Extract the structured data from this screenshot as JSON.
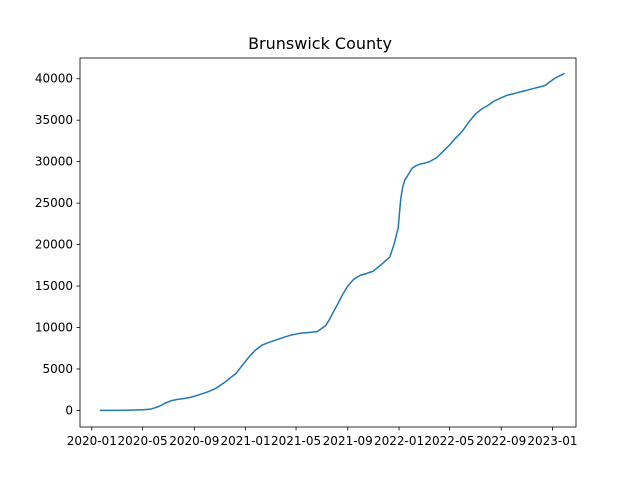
{
  "chart_data": {
    "type": "line",
    "title": "Brunswick County",
    "xlabel": "",
    "ylabel": "",
    "x_ticks": [
      "2020-01",
      "2020-05",
      "2020-09",
      "2021-01",
      "2021-05",
      "2021-09",
      "2022-01",
      "2022-05",
      "2022-09",
      "2023-01"
    ],
    "y_ticks": [
      0,
      5000,
      10000,
      15000,
      20000,
      25000,
      30000,
      35000,
      40000
    ],
    "xlim": [
      "2019-12-04",
      "2023-02-26"
    ],
    "ylim": [
      -2000,
      42500
    ],
    "grid": false,
    "series": [
      {
        "color": "#1f77b4",
        "x": [
          "2020-01-22",
          "2020-03-01",
          "2020-04-01",
          "2020-05-01",
          "2020-05-20",
          "2020-06-10",
          "2020-06-25",
          "2020-07-10",
          "2020-07-25",
          "2020-08-10",
          "2020-08-25",
          "2020-09-10",
          "2020-10-01",
          "2020-10-20",
          "2020-11-10",
          "2020-11-25",
          "2020-12-10",
          "2020-12-25",
          "2021-01-10",
          "2021-01-25",
          "2021-02-10",
          "2021-02-25",
          "2021-03-15",
          "2021-04-01",
          "2021-04-20",
          "2021-05-10",
          "2021-06-01",
          "2021-06-20",
          "2021-07-10",
          "2021-07-20",
          "2021-07-30",
          "2021-08-10",
          "2021-08-20",
          "2021-09-01",
          "2021-09-15",
          "2021-10-01",
          "2021-10-15",
          "2021-11-01",
          "2021-11-20",
          "2021-12-10",
          "2021-12-20",
          "2021-12-30",
          "2022-01-05",
          "2022-01-10",
          "2022-01-15",
          "2022-01-20",
          "2022-01-25",
          "2022-02-01",
          "2022-02-10",
          "2022-02-20",
          "2022-03-01",
          "2022-03-15",
          "2022-04-01",
          "2022-04-15",
          "2022-05-01",
          "2022-05-15",
          "2022-06-01",
          "2022-06-15",
          "2022-07-01",
          "2022-07-15",
          "2022-08-01",
          "2022-08-15",
          "2022-09-01",
          "2022-09-15",
          "2022-10-01",
          "2022-10-15",
          "2022-11-01",
          "2022-11-15",
          "2022-12-01",
          "2022-12-15",
          "2022-12-25",
          "2023-01-05",
          "2023-01-12",
          "2023-01-20",
          "2023-01-28"
        ],
        "y": [
          0,
          10,
          30,
          80,
          150,
          500,
          900,
          1200,
          1350,
          1450,
          1600,
          1850,
          2200,
          2600,
          3300,
          3900,
          4500,
          5500,
          6500,
          7300,
          7900,
          8200,
          8500,
          8800,
          9100,
          9300,
          9400,
          9500,
          10200,
          11000,
          12000,
          13000,
          14000,
          15000,
          15800,
          16300,
          16500,
          16800,
          17600,
          18500,
          20000,
          22000,
          25500,
          27000,
          27800,
          28200,
          28600,
          29200,
          29500,
          29700,
          29800,
          30000,
          30500,
          31200,
          32000,
          32800,
          33700,
          34700,
          35700,
          36300,
          36800,
          37300,
          37700,
          38000,
          38200,
          38400,
          38600,
          38800,
          39000,
          39200,
          39600,
          40000,
          40200,
          40400,
          40600
        ]
      }
    ]
  }
}
